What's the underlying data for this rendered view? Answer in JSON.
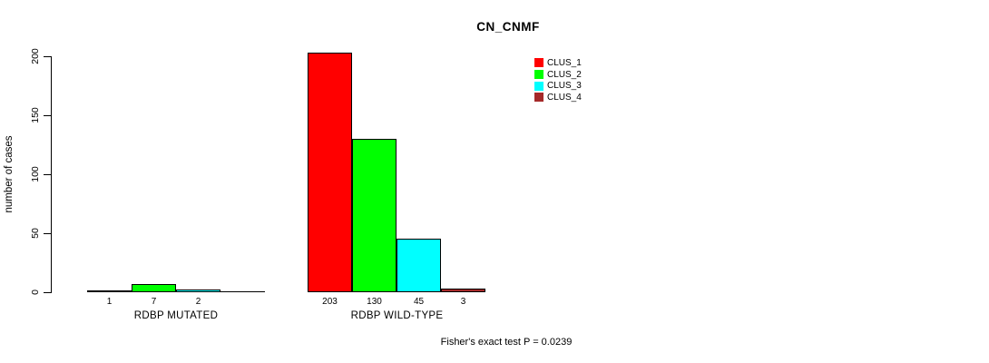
{
  "chart_data": {
    "type": "bar",
    "title": "CN_CNMF",
    "ylabel": "number of cases",
    "xlabel": "",
    "ylim": [
      0,
      200
    ],
    "yticks": [
      0,
      50,
      100,
      150,
      200
    ],
    "grid": false,
    "legend_position": "top-right",
    "categories": [
      "RDBP MUTATED",
      "RDBP WILD-TYPE"
    ],
    "series": [
      {
        "name": "CLUS_1",
        "color": "#FF0000",
        "values": [
          1,
          203
        ]
      },
      {
        "name": "CLUS_2",
        "color": "#00FF00",
        "values": [
          7,
          130
        ]
      },
      {
        "name": "CLUS_3",
        "color": "#00FFFF",
        "values": [
          2,
          45
        ]
      },
      {
        "name": "CLUS_4",
        "color": "#A52A2A",
        "values": [
          0,
          3
        ]
      }
    ],
    "bar_value_labels": [
      [
        "1",
        "7",
        "2",
        ""
      ],
      [
        "203",
        "130",
        "45",
        "3"
      ]
    ],
    "annotation": "Fisher's exact test P = 0.0239",
    "colors": {
      "background": "#FFFFFF",
      "axis": "#000000",
      "text": "#000000"
    }
  }
}
